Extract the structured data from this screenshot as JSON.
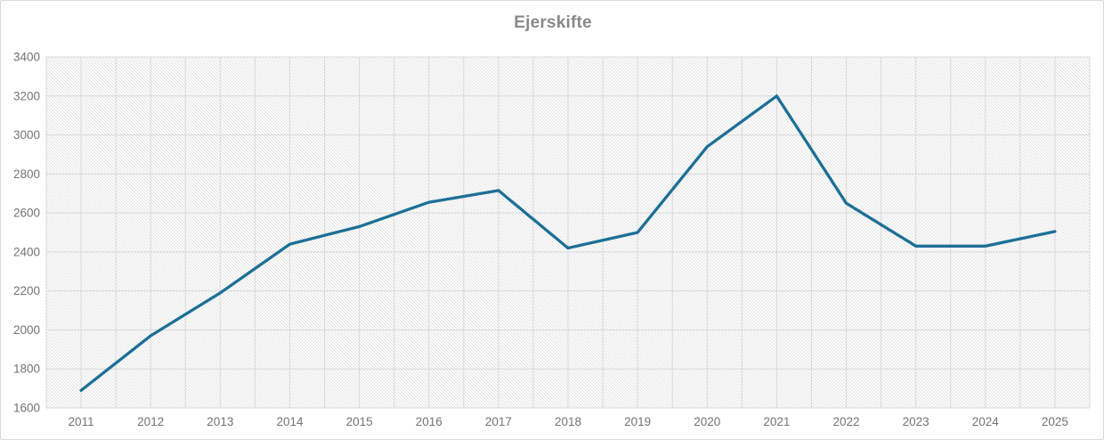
{
  "chart_data": {
    "type": "line",
    "title": "Ejerskifte",
    "xlabel": "",
    "ylabel": "",
    "categories": [
      "2011",
      "2012",
      "2013",
      "2014",
      "2015",
      "2016",
      "2017",
      "2018",
      "2019",
      "2020",
      "2021",
      "2022",
      "2023",
      "2024",
      "2025"
    ],
    "series": [
      {
        "name": "Ejerskifte",
        "values": [
          1690,
          1970,
          2190,
          2440,
          2530,
          2655,
          2715,
          2420,
          2500,
          2940,
          3200,
          2650,
          2430,
          2430,
          2505
        ]
      }
    ],
    "ylim": [
      1600,
      3400
    ],
    "ytick_step": 200,
    "yticks": [
      1600,
      1800,
      2000,
      2200,
      2400,
      2600,
      2800,
      3000,
      3200,
      3400
    ],
    "grid": true,
    "legend": false,
    "plot_area_fill": "diagonal-hatch",
    "colors": {
      "line": "#1d6f96",
      "title_text": "#898989",
      "axis_text": "#737373",
      "gridline": "#d9d9d9",
      "hatch": "#d4d4d4",
      "frame_border": "#d9d9d9"
    }
  }
}
